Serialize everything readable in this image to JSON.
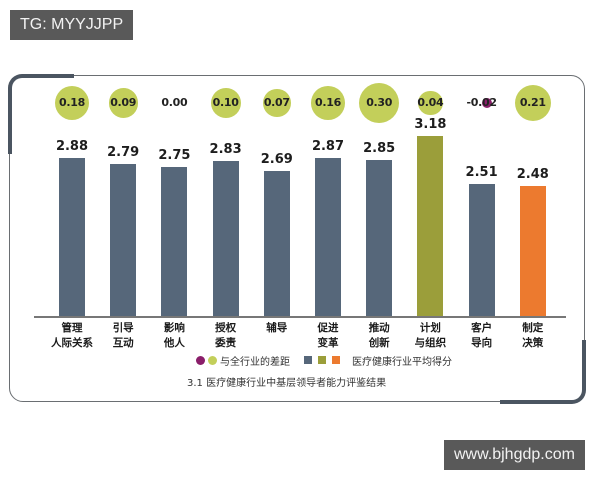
{
  "watermarks": {
    "top_left": "TG: MYYJJPP",
    "bottom_right": "www.bjhgdp.com"
  },
  "colors": {
    "bar_default": "#56677a",
    "bar_highest": "#9b9e3a",
    "bar_lowest": "#ec7a2f",
    "bubble_positive": "#c3cf5a",
    "bubble_negative": "#8a1e6a",
    "frame": "#4b5561"
  },
  "chart_data": {
    "type": "bar",
    "title": "3.1 医疗健康行业中基层领导者能力评鉴结果",
    "categories": [
      "管理人际关系",
      "引导互动",
      "影响他人",
      "授权委责",
      "辅导",
      "促进变革",
      "推动创新",
      "计划与组织",
      "客户导向",
      "制定决策"
    ],
    "category_lines": [
      [
        "管理",
        "人际关系"
      ],
      [
        "引导",
        "互动"
      ],
      [
        "影响",
        "他人"
      ],
      [
        "授权",
        "委责"
      ],
      [
        "辅导",
        ""
      ],
      [
        "促进",
        "变革"
      ],
      [
        "推动",
        "创新"
      ],
      [
        "计划",
        "与组织"
      ],
      [
        "客户",
        "导向"
      ],
      [
        "制定",
        "决策"
      ]
    ],
    "series": [
      {
        "name": "医疗健康行业平均得分",
        "values": [
          2.88,
          2.79,
          2.75,
          2.83,
          2.69,
          2.87,
          2.85,
          3.18,
          2.51,
          2.48
        ]
      },
      {
        "name": "与全行业的差距",
        "values": [
          0.18,
          0.09,
          0.0,
          0.1,
          0.07,
          0.16,
          0.3,
          0.04,
          -0.02,
          0.21
        ]
      }
    ],
    "value_labels": [
      "2.88",
      "2.79",
      "2.75",
      "2.83",
      "2.69",
      "2.87",
      "2.85",
      "3.18",
      "2.51",
      "2.48"
    ],
    "diff_labels": [
      "0.18",
      "0.09",
      "0.00",
      "0.10",
      "0.07",
      "0.16",
      "0.30",
      "0.04",
      "-0.02",
      "0.21"
    ],
    "bar_color_roles": [
      "default",
      "default",
      "default",
      "default",
      "default",
      "default",
      "default",
      "highest",
      "default",
      "lowest"
    ],
    "legend": {
      "diff_label": "与全行业的差距",
      "score_label": "医疗健康行业平均得分"
    },
    "xlabel": "",
    "ylabel": "",
    "grid": false,
    "legend_position": "bottom"
  }
}
